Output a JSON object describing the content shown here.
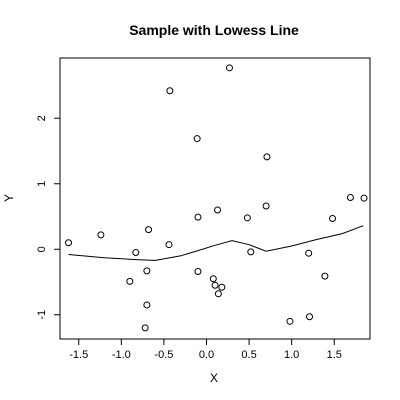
{
  "chart_data": {
    "type": "scatter",
    "title": "Sample with Lowess Line",
    "xlabel": "X",
    "ylabel": "Y",
    "xlim": [
      -1.72,
      1.92
    ],
    "ylim": [
      -1.37,
      2.92
    ],
    "xticks": [
      -1.5,
      -1.0,
      -0.5,
      0.0,
      0.5,
      1.0,
      1.5
    ],
    "xtick_labels": [
      "-1.5",
      "-1.0",
      "-0.5",
      "0.0",
      "0.5",
      "1.0",
      "1.5"
    ],
    "yticks": [
      -1,
      0,
      1,
      2
    ],
    "ytick_labels": [
      "-1",
      "0",
      "1",
      "2"
    ],
    "grid": false,
    "points": {
      "x": [
        -1.62,
        -1.24,
        -0.83,
        -0.9,
        -0.68,
        -0.44,
        -0.43,
        -0.7,
        -0.7,
        -0.72,
        -0.11,
        -0.1,
        -0.1,
        0.08,
        0.1,
        0.13,
        0.14,
        0.18,
        0.27,
        0.48,
        0.52,
        0.7,
        0.71,
        0.98,
        1.2,
        1.21,
        1.39,
        1.48,
        1.69,
        1.85
      ],
      "y": [
        0.1,
        0.22,
        -0.05,
        -0.49,
        0.3,
        0.07,
        2.42,
        -0.33,
        -0.85,
        -1.2,
        1.69,
        0.49,
        -0.34,
        -0.45,
        -0.55,
        0.6,
        -0.68,
        -0.58,
        2.77,
        0.48,
        -0.04,
        0.66,
        1.41,
        -1.1,
        -0.06,
        -1.03,
        -0.41,
        0.47,
        0.79,
        0.78
      ]
    },
    "lowess": {
      "x": [
        -1.62,
        -1.2,
        -0.8,
        -0.6,
        -0.3,
        -0.1,
        0.1,
        0.3,
        0.5,
        0.7,
        1.0,
        1.3,
        1.6,
        1.84
      ],
      "y": [
        -0.08,
        -0.13,
        -0.16,
        -0.17,
        -0.1,
        -0.02,
        0.06,
        0.13,
        0.07,
        -0.03,
        0.05,
        0.15,
        0.24,
        0.36
      ]
    }
  }
}
